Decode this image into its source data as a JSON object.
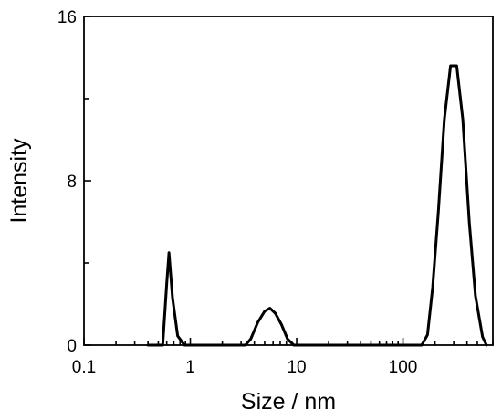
{
  "chart_data": {
    "type": "line",
    "title": "",
    "xlabel": "Size / nm",
    "ylabel": "Intensity",
    "xscale": "log",
    "xlim": [
      0.1,
      700
    ],
    "ylim": [
      0,
      16
    ],
    "x_ticks": [
      {
        "value": 0.1,
        "label": "0.1"
      },
      {
        "value": 1,
        "label": "1"
      },
      {
        "value": 10,
        "label": "10"
      },
      {
        "value": 100,
        "label": "100"
      }
    ],
    "y_ticks": [
      {
        "value": 0,
        "label": "0"
      },
      {
        "value": 8,
        "label": "8"
      },
      {
        "value": 16,
        "label": "16"
      }
    ],
    "y_minor_ticks": [
      4,
      12
    ],
    "grid": false,
    "line_color": "#000000",
    "series": [
      {
        "points": [
          [
            0.4,
            0
          ],
          [
            0.55,
            0
          ],
          [
            0.6,
            3.0
          ],
          [
            0.63,
            4.5
          ],
          [
            0.68,
            2.3
          ],
          [
            0.76,
            0.45
          ],
          [
            0.88,
            0
          ],
          [
            1.0,
            0
          ],
          [
            3.3,
            0
          ],
          [
            3.7,
            0.3
          ],
          [
            4.3,
            1.1
          ],
          [
            5.0,
            1.65
          ],
          [
            5.6,
            1.8
          ],
          [
            6.3,
            1.55
          ],
          [
            7.2,
            1.0
          ],
          [
            8.2,
            0.3
          ],
          [
            9.4,
            0
          ],
          [
            150,
            0
          ],
          [
            170,
            0.5
          ],
          [
            190,
            2.8
          ],
          [
            215,
            6.5
          ],
          [
            245,
            11
          ],
          [
            280,
            13.6
          ],
          [
            320,
            13.6
          ],
          [
            365,
            11.0
          ],
          [
            420,
            6.0
          ],
          [
            480,
            2.4
          ],
          [
            560,
            0.4
          ],
          [
            610,
            0
          ]
        ]
      }
    ]
  }
}
